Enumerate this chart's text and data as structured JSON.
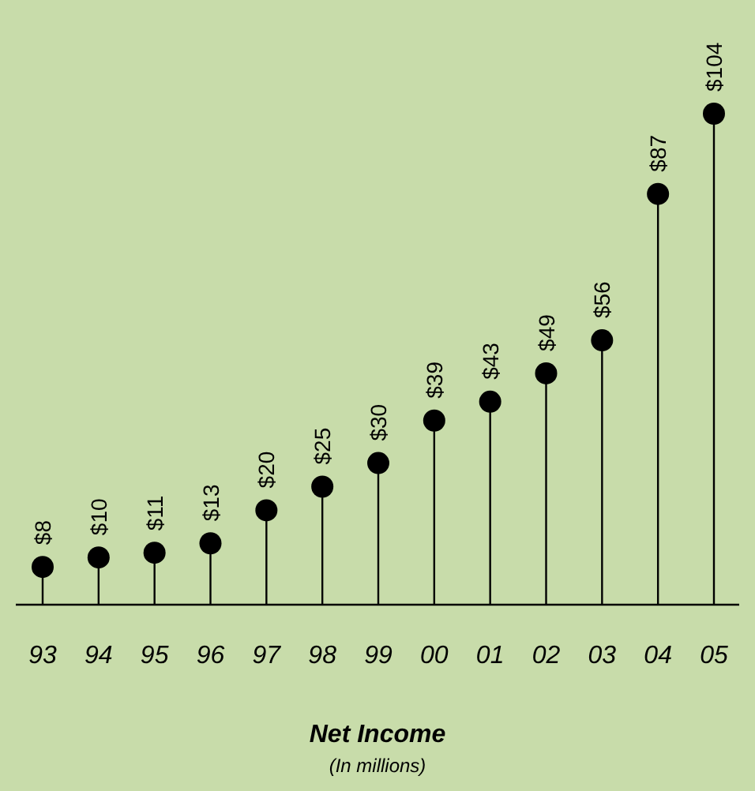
{
  "chart_data": {
    "type": "lollipop",
    "title": "Net Income",
    "subtitle": "(In millions)",
    "categories": [
      "93",
      "94",
      "95",
      "96",
      "97",
      "98",
      "99",
      "00",
      "01",
      "02",
      "03",
      "04",
      "05"
    ],
    "values": [
      8,
      10,
      11,
      13,
      20,
      25,
      30,
      39,
      43,
      49,
      56,
      87,
      104
    ],
    "value_labels": [
      "$8",
      "$10",
      "$11",
      "$13",
      "$20",
      "$25",
      "$30",
      "$39",
      "$43",
      "$49",
      "$56",
      "$87",
      "$104"
    ],
    "color": "#000000",
    "marker": "circle"
  }
}
